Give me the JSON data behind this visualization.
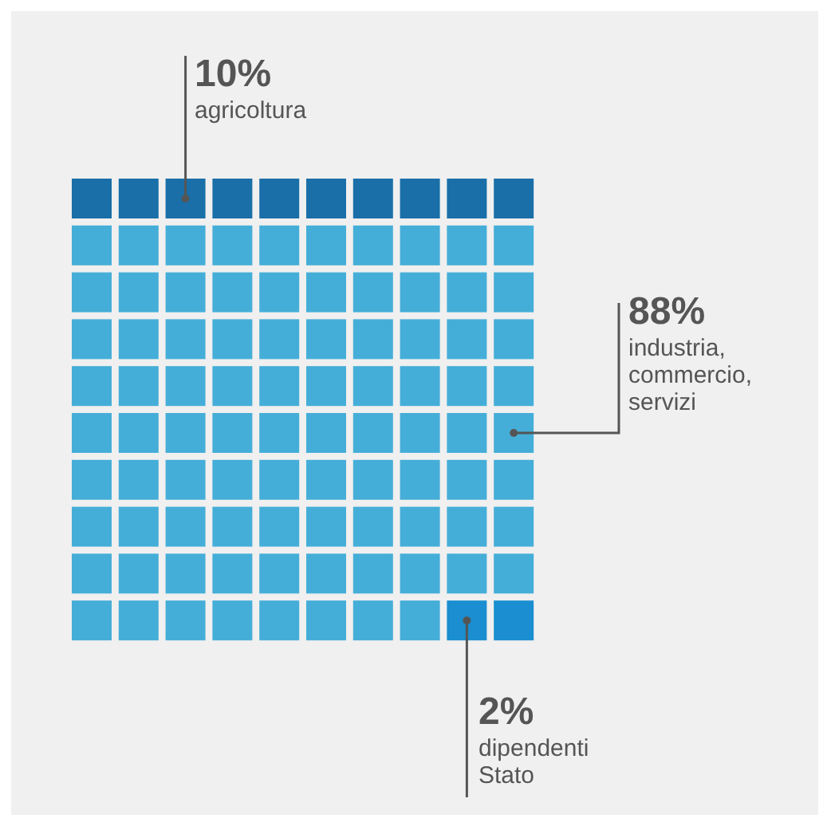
{
  "chart_data": {
    "type": "other",
    "categories": [
      "agricoltura",
      "industria, commercio, servizi",
      "dipendenti Stato"
    ],
    "values": [
      10,
      88,
      2
    ],
    "colors": [
      "#1a6fa8",
      "#45aed8",
      "#1a8ed0"
    ],
    "value_labels": [
      "10%",
      "88%",
      "2%"
    ]
  }
}
